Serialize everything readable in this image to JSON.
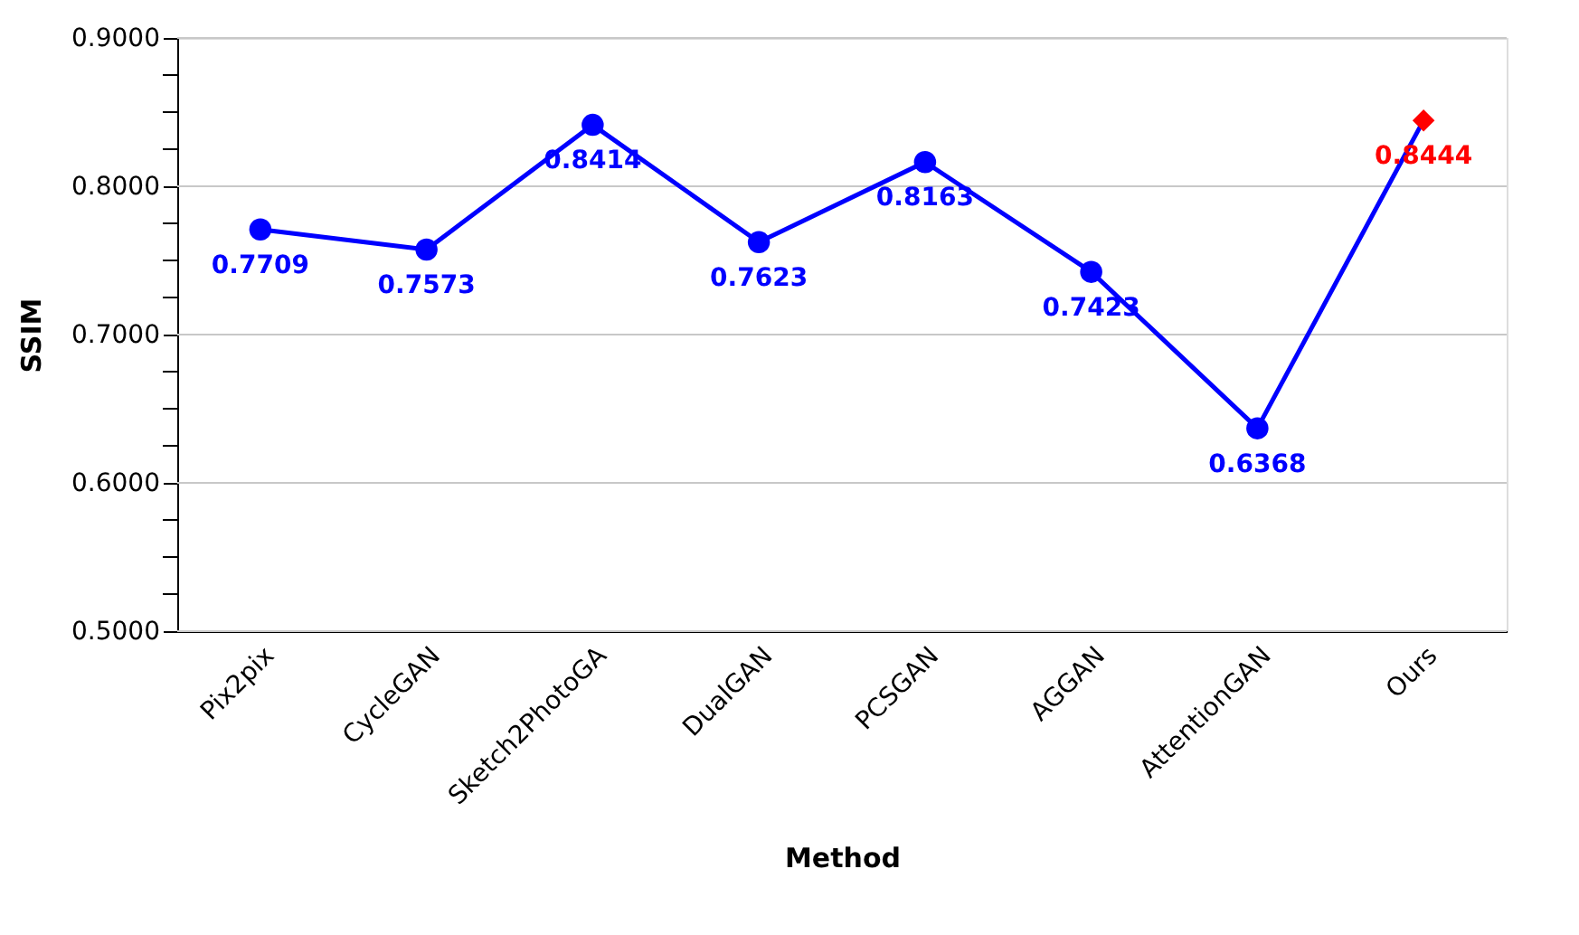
{
  "chart_data": {
    "type": "line",
    "xlabel": "Method",
    "ylabel": "SSIM",
    "categories": [
      "Pix2pix",
      "CycleGAN",
      "Sketch2PhotoGA",
      "DualGAN",
      "PCSGAN",
      "AGGAN",
      "AttentionGAN",
      "Ours"
    ],
    "series": [
      {
        "color": "#0000ff",
        "marker": "none",
        "value_labels": [
          "0.7709",
          "0.7573",
          "0.8414",
          "0.7623",
          "0.8163",
          "0.7423",
          "0.6368",
          "0.8444"
        ],
        "line_style": "solid",
        "colors": [
          "#0000ff",
          "#0000ff",
          "#0000ff",
          "#0000ff",
          "#0000ff",
          "#0000ff",
          "#0000ff",
          "#ff0000"
        ],
        "values": [
          0.7709,
          0.7573,
          0.8414,
          0.7623,
          0.8163,
          0.7423,
          0.6368,
          0.8444
        ]
      },
      {
        "type": "scatter",
        "color": "#0000ff",
        "marker": "circle",
        "values": [
          0.7709,
          0.7573,
          0.8414,
          0.7623,
          0.8163,
          0.7423,
          0.6368,
          null
        ]
      },
      {
        "type": "scatter",
        "color": "#ff0000",
        "marker": "diamond",
        "values": [
          null,
          null,
          null,
          null,
          null,
          null,
          null,
          0.8444
        ]
      }
    ],
    "ylim": [
      0.5,
      0.9
    ],
    "yticks": [
      {
        "value": 0.5,
        "label": "0.5000"
      },
      {
        "value": 0.525,
        "label": null
      },
      {
        "value": 0.55,
        "label": null
      },
      {
        "value": 0.575,
        "label": null
      },
      {
        "value": 0.6,
        "label": "0.6000"
      },
      {
        "value": 0.625,
        "label": null
      },
      {
        "value": 0.65,
        "label": null
      },
      {
        "value": 0.675,
        "label": null
      },
      {
        "value": 0.7,
        "label": "0.7000"
      },
      {
        "value": 0.725,
        "label": null
      },
      {
        "value": 0.75,
        "label": null
      },
      {
        "value": 0.775,
        "label": null
      },
      {
        "value": 0.8,
        "label": "0.8000"
      },
      {
        "value": 0.825,
        "label": null
      },
      {
        "value": 0.85,
        "label": null
      },
      {
        "value": 0.875,
        "label": null
      },
      {
        "value": 0.9,
        "label": "0.9000"
      }
    ],
    "grid": "y"
  }
}
